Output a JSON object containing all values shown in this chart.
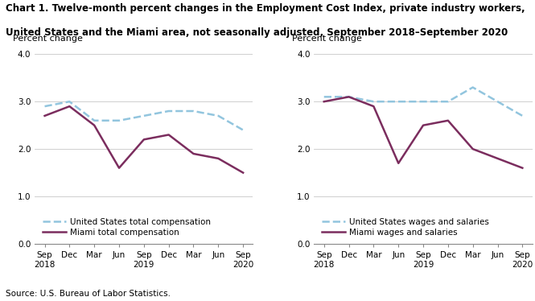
{
  "title_line1": "Chart 1. Twelve-month percent changes in the Employment Cost Index, private industry workers,",
  "title_line2": "United States and the Miami area, not seasonally adjusted, September 2018–September 2020",
  "source": "Source: U.S. Bureau of Labor Statistics.",
  "x_labels": [
    "Sep\n2018",
    "Dec",
    "Mar",
    "Jun",
    "Sep\n2019",
    "Dec",
    "Mar",
    "Jun",
    "Sep\n2020"
  ],
  "left": {
    "ylabel": "Percent change",
    "ylim": [
      0.0,
      4.0
    ],
    "yticks": [
      0.0,
      1.0,
      2.0,
      3.0,
      4.0
    ],
    "us_label": "United States total compensation",
    "miami_label": "Miami total compensation",
    "us_values": [
      2.9,
      3.0,
      2.6,
      2.6,
      2.7,
      2.8,
      2.8,
      2.7,
      2.4
    ],
    "miami_values": [
      2.7,
      2.9,
      2.5,
      1.6,
      2.2,
      2.3,
      1.9,
      1.8,
      1.5
    ]
  },
  "right": {
    "ylabel": "Percent change",
    "ylim": [
      0.0,
      4.0
    ],
    "yticks": [
      0.0,
      1.0,
      2.0,
      3.0,
      4.0
    ],
    "us_label": "United States wages and salaries",
    "miami_label": "Miami wages and salaries",
    "us_values": [
      3.1,
      3.1,
      3.0,
      3.0,
      3.0,
      3.0,
      3.3,
      3.0,
      2.7
    ],
    "miami_values": [
      3.0,
      3.1,
      2.9,
      1.7,
      2.5,
      2.6,
      2.0,
      1.8,
      1.6
    ]
  },
  "us_color": "#92C5DE",
  "miami_color": "#7B2D5E",
  "linewidth": 1.8,
  "title_fontsize": 8.5,
  "axis_label_fontsize": 8.0,
  "tick_fontsize": 7.5,
  "legend_fontsize": 7.5,
  "source_fontsize": 7.5
}
